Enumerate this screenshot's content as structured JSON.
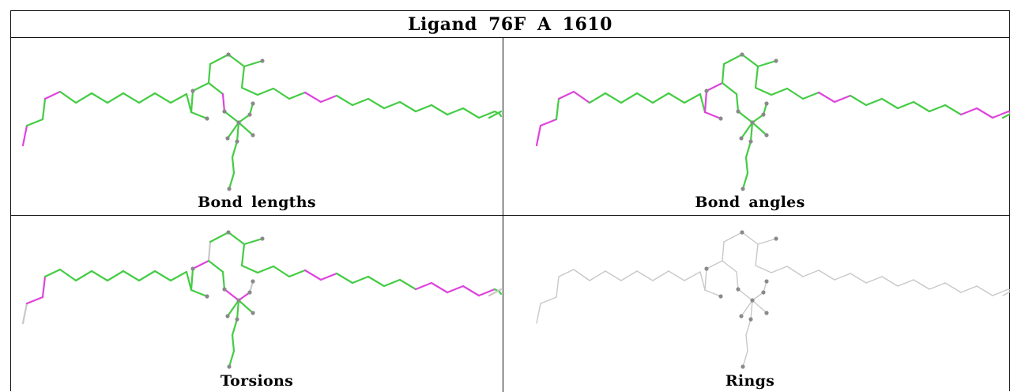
{
  "title": "Ligand 76F A 1610",
  "colors": {
    "ok": "#44cc44",
    "outlier": "#dd44dd",
    "none": "#c8c8c8",
    "atom": "#8a8a8a",
    "border": "#111111"
  },
  "panels": [
    {
      "caption": "Bond lengths",
      "outliers": [
        "a1",
        "a4",
        "c6",
        "c7",
        "d2"
      ],
      "greys": []
    },
    {
      "caption": "Bond angles",
      "outliers": [
        "a1",
        "a2",
        "a4",
        "a5",
        "a14",
        "a15",
        "a16",
        "c6",
        "c7",
        "c15",
        "c16",
        "c17",
        "c18",
        "c19"
      ],
      "greys": []
    },
    {
      "caption": "Torsions",
      "outliers": [
        "a2",
        "a3",
        "a16",
        "c6",
        "c7",
        "c13",
        "c14",
        "c15",
        "c16",
        "c17",
        "d3",
        "d4"
      ],
      "greys": [
        "a1",
        "a17",
        "c23",
        "e1"
      ],
      "grey_others": false
    },
    {
      "caption": "Rings",
      "outliers": [],
      "greys": [],
      "grey_others": true
    }
  ]
}
